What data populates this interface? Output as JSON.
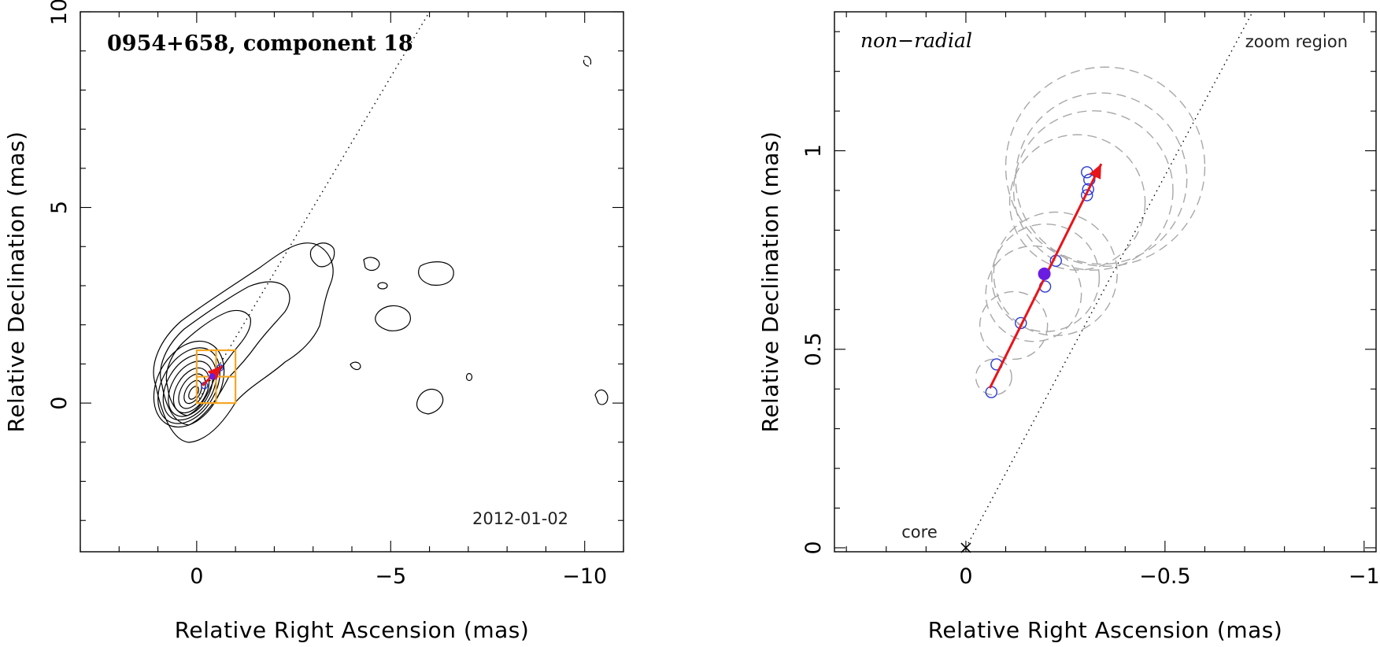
{
  "chart_data": [
    {
      "type": "scatter",
      "panel": "left",
      "title": "0954+658, component 18",
      "epoch_label": "2012-01-02",
      "xlabel": "Relative Right Ascension (mas)",
      "ylabel": "Relative Declination (mas)",
      "xlim": [
        3,
        -11
      ],
      "ylim": [
        -3.8,
        10
      ],
      "xticks": [
        0,
        -5,
        -10
      ],
      "xtick_labels": [
        "0",
        "−5",
        "−10"
      ],
      "yticks": [
        0,
        5,
        10
      ],
      "ytick_labels": [
        "0",
        "5",
        "10"
      ],
      "jet_axis": {
        "from": [
          0,
          0
        ],
        "to": [
          -6,
          10
        ]
      },
      "zoom_box": {
        "x": [
          0,
          -1
        ],
        "y": [
          0,
          1.35
        ]
      },
      "component_points": [
        [
          -0.2,
          0.45
        ],
        [
          -0.6,
          0.9
        ]
      ],
      "filled_point": [
        -0.4,
        0.68
      ],
      "fit_arrow": {
        "from": [
          -0.15,
          0.45
        ],
        "to": [
          -0.65,
          0.95
        ]
      },
      "contours_present": "jet emission contours"
    },
    {
      "type": "scatter",
      "panel": "right",
      "label": "non−radial",
      "region_label": "zoom region",
      "core_label": "core",
      "xlabel": "Relative Right Ascension (mas)",
      "ylabel": "Relative Declination (mas)",
      "xlim": [
        0.33,
        -1.03
      ],
      "ylim": [
        -0.01,
        1.35
      ],
      "xticks": [
        0,
        -0.5,
        -1
      ],
      "xtick_labels": [
        "0",
        "−0.5",
        "−1"
      ],
      "yticks": [
        0,
        0.5,
        1
      ],
      "ytick_labels": [
        "0",
        "0.5",
        "1"
      ],
      "core": [
        0,
        0
      ],
      "jet_axis": {
        "from": [
          0,
          0
        ],
        "to": [
          -0.72,
          1.4
        ]
      },
      "component_positions": [
        {
          "x": -0.064,
          "y": 0.392
        },
        {
          "x": -0.077,
          "y": 0.462
        },
        {
          "x": -0.138,
          "y": 0.566
        },
        {
          "x": -0.199,
          "y": 0.658
        },
        {
          "x": -0.226,
          "y": 0.723
        },
        {
          "x": -0.304,
          "y": 0.888
        },
        {
          "x": -0.307,
          "y": 0.903
        },
        {
          "x": -0.31,
          "y": 0.927
        },
        {
          "x": -0.304,
          "y": 0.946
        }
      ],
      "filled_point": {
        "x": -0.197,
        "y": 0.69
      },
      "fit_arrow": {
        "from": [
          -0.06,
          0.402
        ],
        "to": [
          -0.34,
          0.967
        ]
      },
      "uncertainty_circles": [
        {
          "x": -0.07,
          "y": 0.43,
          "r": 0.045
        },
        {
          "x": -0.12,
          "y": 0.56,
          "r": 0.085
        },
        {
          "x": -0.17,
          "y": 0.64,
          "r": 0.12
        },
        {
          "x": -0.2,
          "y": 0.68,
          "r": 0.135
        },
        {
          "x": -0.225,
          "y": 0.69,
          "r": 0.155
        },
        {
          "x": -0.28,
          "y": 0.87,
          "r": 0.17
        },
        {
          "x": -0.32,
          "y": 0.9,
          "r": 0.2
        },
        {
          "x": -0.34,
          "y": 0.93,
          "r": 0.215
        },
        {
          "x": -0.35,
          "y": 0.96,
          "r": 0.25
        }
      ]
    }
  ]
}
